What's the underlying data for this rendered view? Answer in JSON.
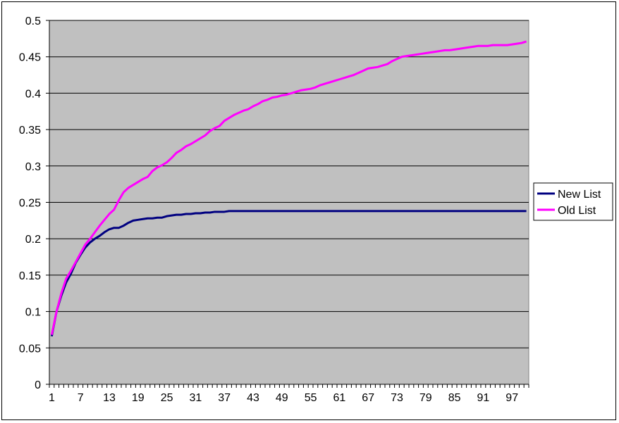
{
  "chart_data": {
    "type": "line",
    "title": "",
    "xlabel": "",
    "ylabel": "",
    "ylim": [
      0,
      0.5
    ],
    "y_ticks": [
      "0",
      "0.05",
      "0.1",
      "0.15",
      "0.2",
      "0.25",
      "0.3",
      "0.35",
      "0.4",
      "0.45",
      "0.5"
    ],
    "x_ticks": [
      "1",
      "7",
      "13",
      "19",
      "25",
      "31",
      "37",
      "43",
      "49",
      "55",
      "61",
      "67",
      "73",
      "79",
      "85",
      "91",
      "97"
    ],
    "x_range": [
      1,
      100
    ],
    "grid": "horizontal",
    "legend_position": "right",
    "plot_background": "#c0c0c0",
    "series": [
      {
        "name": "New List",
        "color": "#000080",
        "points": [
          [
            1,
            0.066
          ],
          [
            2,
            0.1
          ],
          [
            3,
            0.122
          ],
          [
            4,
            0.14
          ],
          [
            5,
            0.152
          ],
          [
            6,
            0.167
          ],
          [
            7,
            0.178
          ],
          [
            8,
            0.188
          ],
          [
            9,
            0.195
          ],
          [
            10,
            0.2
          ],
          [
            11,
            0.204
          ],
          [
            12,
            0.209
          ],
          [
            13,
            0.213
          ],
          [
            14,
            0.215
          ],
          [
            15,
            0.215
          ],
          [
            16,
            0.218
          ],
          [
            17,
            0.222
          ],
          [
            18,
            0.225
          ],
          [
            19,
            0.226
          ],
          [
            20,
            0.227
          ],
          [
            21,
            0.228
          ],
          [
            22,
            0.228
          ],
          [
            23,
            0.229
          ],
          [
            24,
            0.229
          ],
          [
            25,
            0.231
          ],
          [
            26,
            0.232
          ],
          [
            27,
            0.233
          ],
          [
            28,
            0.233
          ],
          [
            29,
            0.234
          ],
          [
            30,
            0.234
          ],
          [
            31,
            0.235
          ],
          [
            32,
            0.235
          ],
          [
            33,
            0.236
          ],
          [
            34,
            0.236
          ],
          [
            35,
            0.237
          ],
          [
            36,
            0.237
          ],
          [
            37,
            0.237
          ],
          [
            38,
            0.238
          ],
          [
            39,
            0.238
          ],
          [
            40,
            0.238
          ],
          [
            45,
            0.238
          ],
          [
            50,
            0.238
          ],
          [
            60,
            0.238
          ],
          [
            70,
            0.238
          ],
          [
            80,
            0.238
          ],
          [
            90,
            0.238
          ],
          [
            100,
            0.238
          ]
        ]
      },
      {
        "name": "Old List",
        "color": "#ff00ff",
        "points": [
          [
            1,
            0.068
          ],
          [
            2,
            0.1
          ],
          [
            3,
            0.125
          ],
          [
            4,
            0.145
          ],
          [
            5,
            0.156
          ],
          [
            6,
            0.168
          ],
          [
            7,
            0.18
          ],
          [
            8,
            0.192
          ],
          [
            9,
            0.2
          ],
          [
            10,
            0.209
          ],
          [
            11,
            0.218
          ],
          [
            12,
            0.226
          ],
          [
            13,
            0.234
          ],
          [
            14,
            0.24
          ],
          [
            15,
            0.253
          ],
          [
            16,
            0.264
          ],
          [
            17,
            0.27
          ],
          [
            18,
            0.274
          ],
          [
            19,
            0.278
          ],
          [
            20,
            0.282
          ],
          [
            21,
            0.285
          ],
          [
            22,
            0.293
          ],
          [
            23,
            0.298
          ],
          [
            24,
            0.301
          ],
          [
            25,
            0.305
          ],
          [
            26,
            0.311
          ],
          [
            27,
            0.318
          ],
          [
            28,
            0.322
          ],
          [
            29,
            0.327
          ],
          [
            30,
            0.33
          ],
          [
            31,
            0.334
          ],
          [
            32,
            0.338
          ],
          [
            33,
            0.342
          ],
          [
            34,
            0.348
          ],
          [
            35,
            0.352
          ],
          [
            36,
            0.355
          ],
          [
            37,
            0.362
          ],
          [
            38,
            0.366
          ],
          [
            39,
            0.37
          ],
          [
            40,
            0.373
          ],
          [
            41,
            0.376
          ],
          [
            42,
            0.378
          ],
          [
            43,
            0.382
          ],
          [
            44,
            0.385
          ],
          [
            45,
            0.389
          ],
          [
            46,
            0.391
          ],
          [
            47,
            0.394
          ],
          [
            48,
            0.395
          ],
          [
            49,
            0.397
          ],
          [
            50,
            0.398
          ],
          [
            51,
            0.4
          ],
          [
            52,
            0.402
          ],
          [
            53,
            0.404
          ],
          [
            54,
            0.405
          ],
          [
            55,
            0.406
          ],
          [
            56,
            0.408
          ],
          [
            57,
            0.411
          ],
          [
            58,
            0.413
          ],
          [
            59,
            0.415
          ],
          [
            60,
            0.417
          ],
          [
            61,
            0.419
          ],
          [
            62,
            0.421
          ],
          [
            63,
            0.423
          ],
          [
            64,
            0.425
          ],
          [
            65,
            0.428
          ],
          [
            66,
            0.431
          ],
          [
            67,
            0.434
          ],
          [
            68,
            0.435
          ],
          [
            69,
            0.436
          ],
          [
            70,
            0.438
          ],
          [
            71,
            0.44
          ],
          [
            72,
            0.444
          ],
          [
            73,
            0.447
          ],
          [
            74,
            0.45
          ],
          [
            75,
            0.451
          ],
          [
            76,
            0.452
          ],
          [
            77,
            0.453
          ],
          [
            78,
            0.454
          ],
          [
            79,
            0.455
          ],
          [
            80,
            0.456
          ],
          [
            81,
            0.457
          ],
          [
            82,
            0.458
          ],
          [
            83,
            0.459
          ],
          [
            84,
            0.459
          ],
          [
            85,
            0.46
          ],
          [
            86,
            0.461
          ],
          [
            87,
            0.462
          ],
          [
            88,
            0.463
          ],
          [
            89,
            0.464
          ],
          [
            90,
            0.465
          ],
          [
            91,
            0.465
          ],
          [
            92,
            0.465
          ],
          [
            93,
            0.466
          ],
          [
            94,
            0.466
          ],
          [
            95,
            0.466
          ],
          [
            96,
            0.466
          ],
          [
            97,
            0.467
          ],
          [
            98,
            0.468
          ],
          [
            99,
            0.469
          ],
          [
            100,
            0.471
          ]
        ]
      }
    ]
  }
}
